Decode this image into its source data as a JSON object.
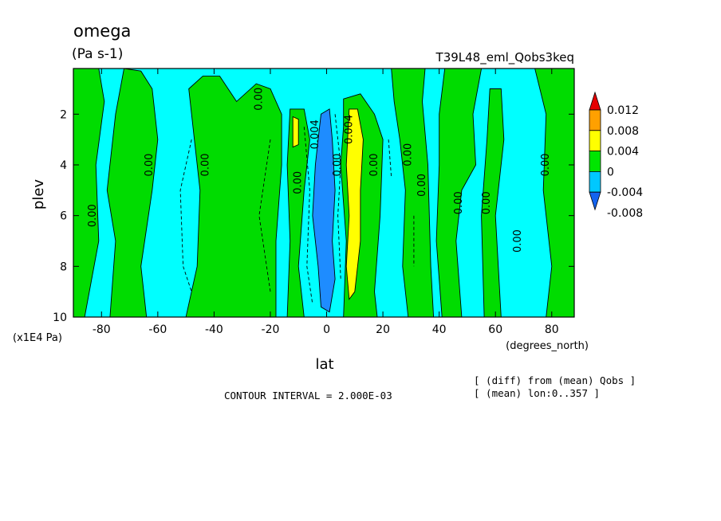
{
  "chart_data": {
    "type": "heatmap",
    "title": "omega",
    "units": "(Pa s-1)",
    "run_label": "T39L48_eml_Qobs3keq",
    "xlabel": "lat",
    "x_unit": "(degrees_north)",
    "ylabel": "plev",
    "y_unit": "(x1E4 Pa)",
    "xlim": [
      -90,
      88
    ],
    "ylim": [
      10,
      0.2
    ],
    "x_ticks": [
      -80,
      -60,
      -40,
      -20,
      0,
      20,
      40,
      60,
      80
    ],
    "y_ticks": [
      2,
      4,
      6,
      8,
      10
    ],
    "contour_interval_text": "CONTOUR INTERVAL = 2.000E-03",
    "notes": [
      "[ (diff) from (mean) Qobs ]",
      "[ (mean) lon:0..357 ]"
    ],
    "colorbar": {
      "levels": [
        -0.008,
        -0.004,
        0,
        0.004,
        0.008,
        0.012
      ],
      "labels": [
        "0.012",
        "0.008",
        "0.004",
        "0",
        "-0.004",
        "-0.008"
      ],
      "colors": [
        "#1464f0",
        "#00c8ff",
        "#00e600",
        "#ffff00",
        "#ffa000",
        "#e60000"
      ]
    },
    "band_colors": {
      "strong_negative": "#1e8cff",
      "negative": "#00ffff",
      "positive": "#00dc00",
      "strong_positive": "#ffff00"
    },
    "contour_labels": [
      {
        "text": "0.00",
        "lat": -82,
        "p": 6.0
      },
      {
        "text": "0.00",
        "lat": -62,
        "p": 4.0
      },
      {
        "text": "0.00",
        "lat": -42,
        "p": 4.0
      },
      {
        "text": "0.00",
        "lat": -23,
        "p": 1.4
      },
      {
        "text": "0.00",
        "lat": -9,
        "p": 4.7
      },
      {
        "text": "0.004",
        "lat": -3,
        "p": 2.8
      },
      {
        "text": "0.00",
        "lat": 5,
        "p": 4.0
      },
      {
        "text": "0.004",
        "lat": 9,
        "p": 2.6
      },
      {
        "text": "0.00",
        "lat": 18,
        "p": 4.0
      },
      {
        "text": "0.00",
        "lat": 30,
        "p": 3.6
      },
      {
        "text": "0.00",
        "lat": 35,
        "p": 4.8
      },
      {
        "text": "0.00",
        "lat": 48,
        "p": 5.5
      },
      {
        "text": "0.00",
        "lat": 58,
        "p": 5.5
      },
      {
        "text": "0.00",
        "lat": 69,
        "p": 7.0
      },
      {
        "text": "0.00",
        "lat": 79,
        "p": 4.0
      }
    ]
  }
}
